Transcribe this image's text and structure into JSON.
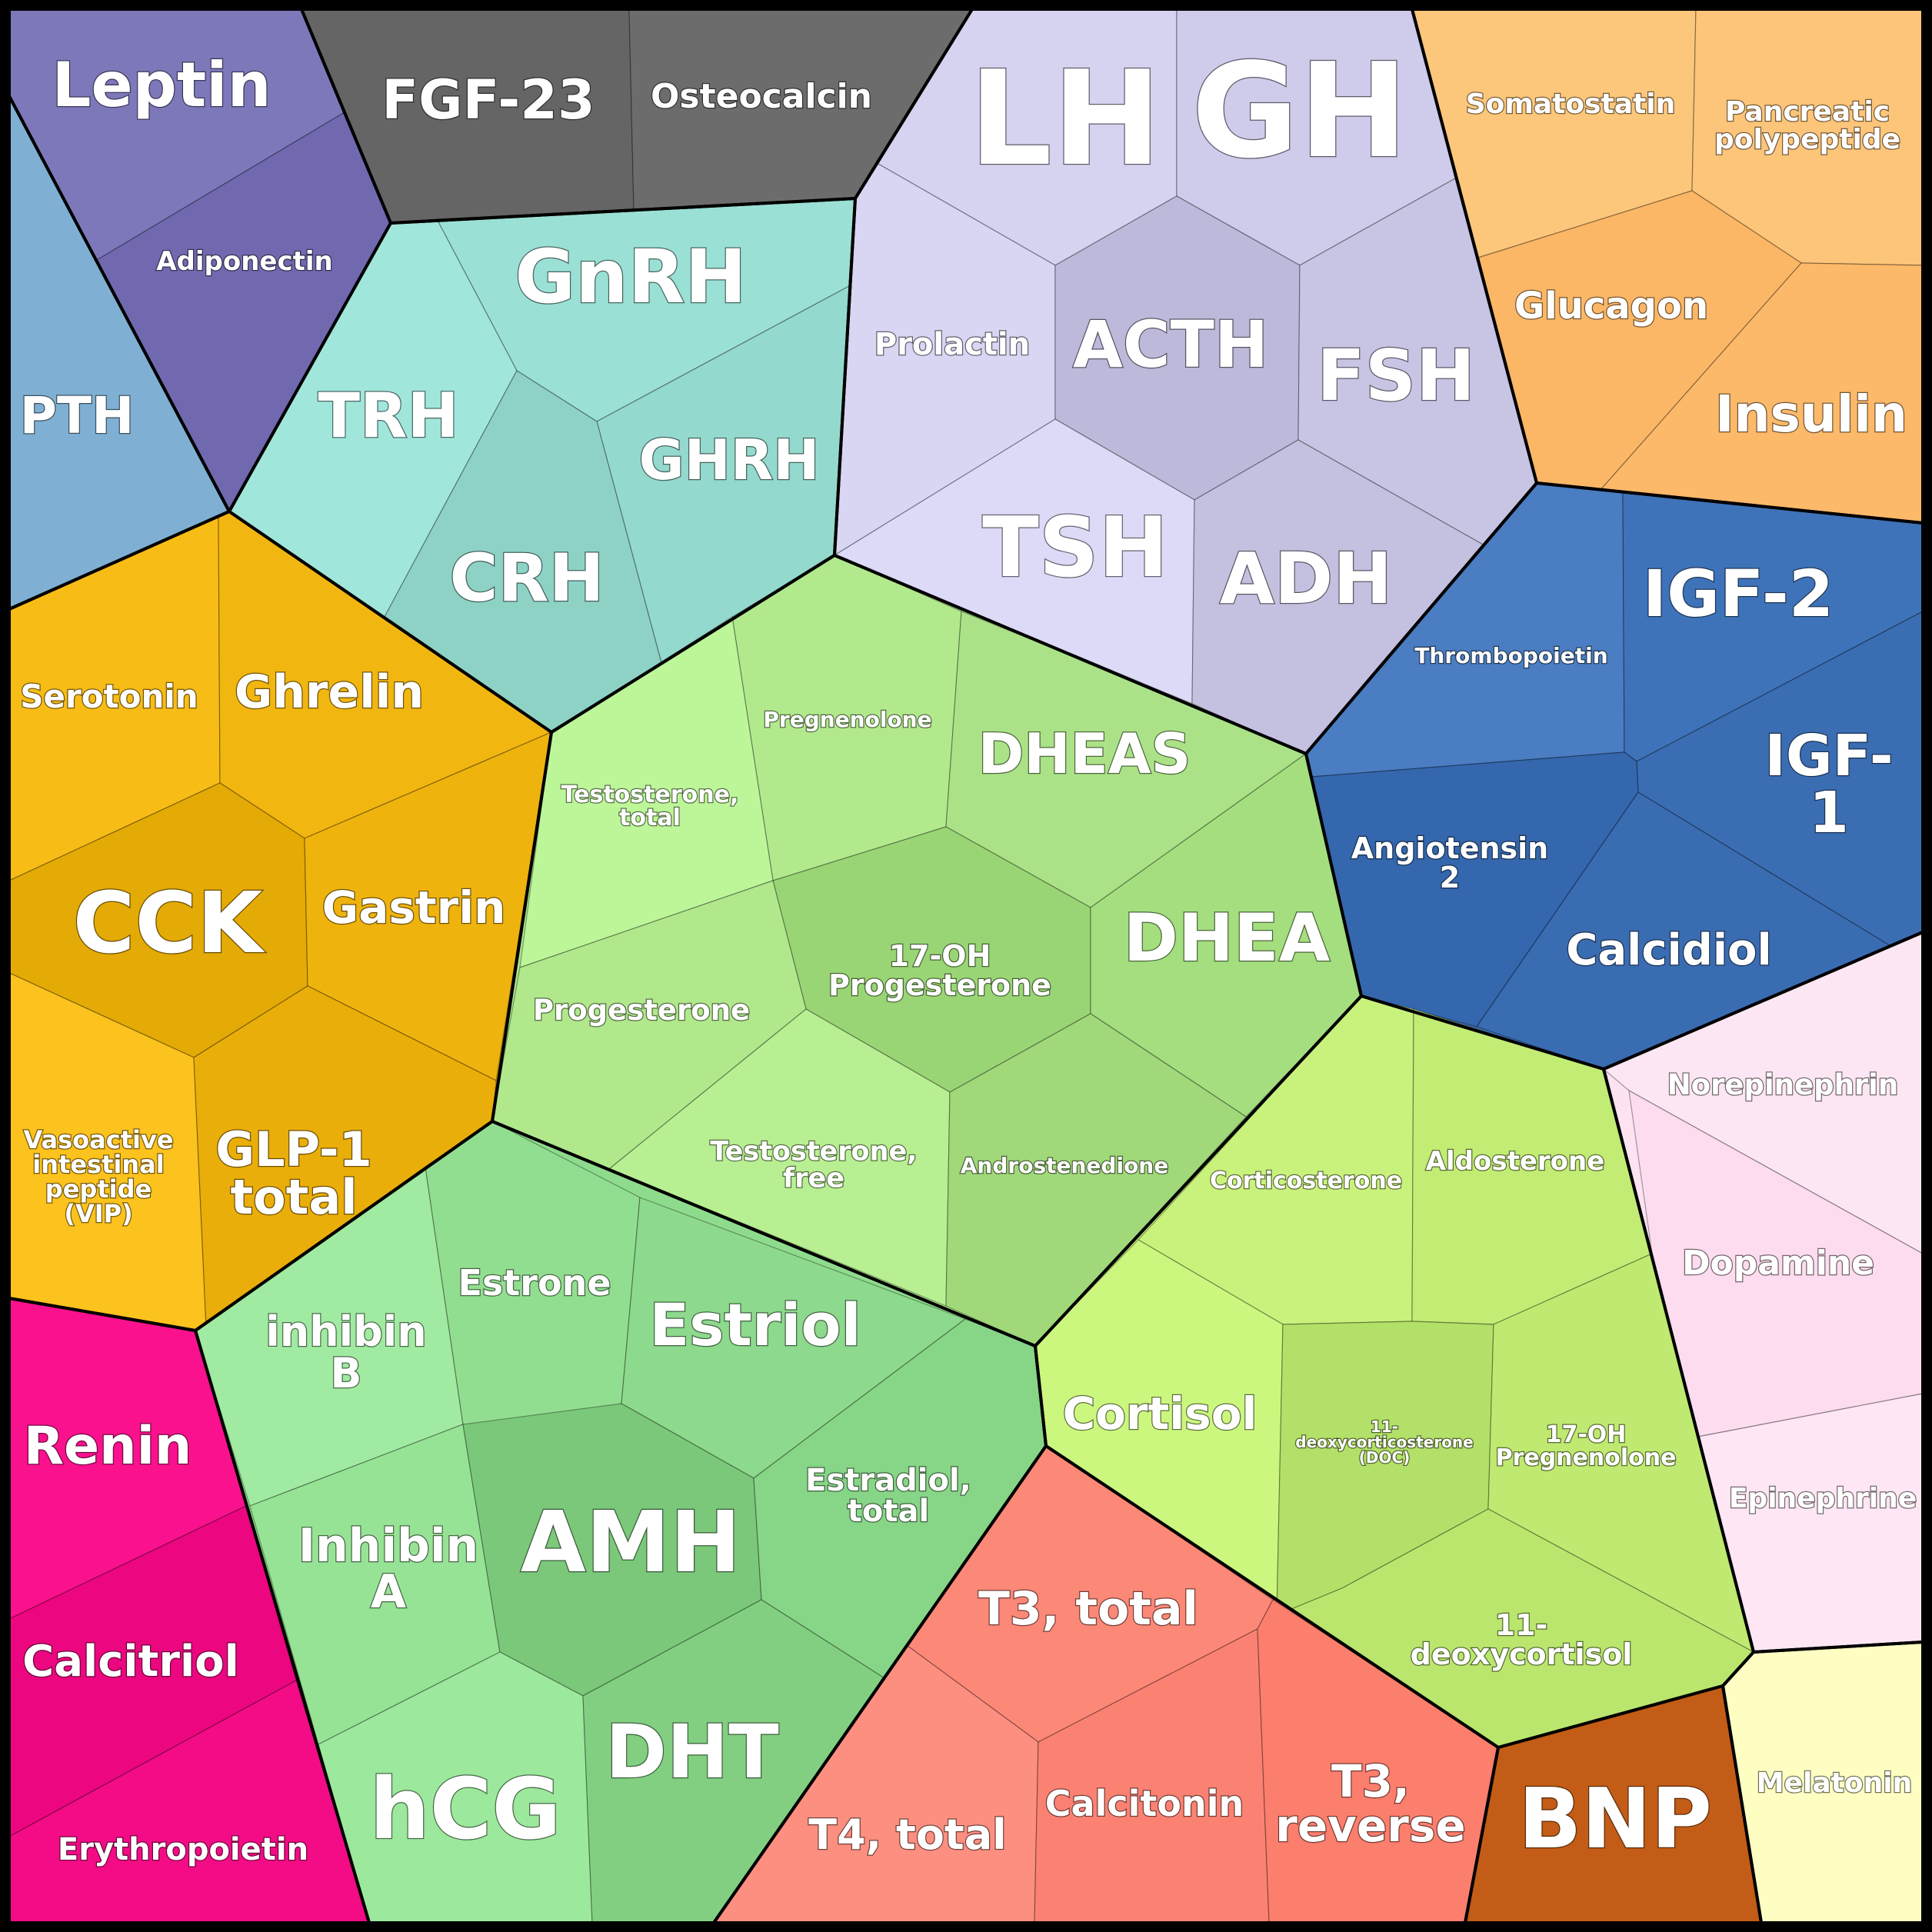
{
  "groups": [
    {
      "id": "adipose",
      "color": "#7a74b8",
      "hormones": [
        {
          "id": "leptin",
          "label": "Leptin",
          "color": "#7d78ba"
        },
        {
          "id": "adiponectin",
          "label": "Adiponectin",
          "color": "#7069b0"
        }
      ]
    },
    {
      "id": "bone",
      "color": "#686868",
      "hormones": [
        {
          "id": "fgf23",
          "label": "FGF-23",
          "color": "#656565"
        },
        {
          "id": "osteocalcin",
          "label": "Osteocalcin",
          "color": "#6c6c6c"
        }
      ]
    },
    {
      "id": "pituitary",
      "color": "#cdcbe9",
      "hormones": [
        {
          "id": "lh",
          "label": "LH",
          "color": "#d5d3ef"
        },
        {
          "id": "gh",
          "label": "GH",
          "color": "#cfcbea"
        },
        {
          "id": "prolactin",
          "label": "Prolactin",
          "color": "#d8d6f2"
        },
        {
          "id": "acth",
          "label": "ACTH",
          "color": "#bdb9da"
        },
        {
          "id": "fsh",
          "label": "FSH",
          "color": "#c8c4e4"
        },
        {
          "id": "tsh",
          "label": "TSH",
          "color": "#dcdaf6"
        },
        {
          "id": "adh",
          "label": "ADH",
          "color": "#c4c0df"
        }
      ]
    },
    {
      "id": "pancreas",
      "color": "#fbbd6d",
      "hormones": [
        {
          "id": "somatostatin",
          "label": "Somatostatin",
          "color": "#fdc77b"
        },
        {
          "id": "pancreatic-polypeptide",
          "label": "Pancreatic\npolypeptide",
          "color": "#fdc57a"
        },
        {
          "id": "glucagon",
          "label": "Glucagon",
          "color": "#fbb766"
        },
        {
          "id": "insulin",
          "label": "Insulin",
          "color": "#fcb96a"
        }
      ]
    },
    {
      "id": "parathyroid",
      "color": "#7faed1",
      "hormones": [
        {
          "id": "pth",
          "label": "PTH",
          "color": "#7fb0d3"
        }
      ]
    },
    {
      "id": "hypothalamus",
      "color": "#97ddd1",
      "hormones": [
        {
          "id": "gnrh",
          "label": "GnRH",
          "color": "#9be0d4"
        },
        {
          "id": "trh",
          "label": "TRH",
          "color": "#a1e6da"
        },
        {
          "id": "ghrh",
          "label": "GHRH",
          "color": "#94d9cd"
        },
        {
          "id": "crh",
          "label": "CRH",
          "color": "#8ed2c6"
        }
      ]
    },
    {
      "id": "gut",
      "color": "#f0b612",
      "hormones": [
        {
          "id": "serotonin",
          "label": "Serotonin",
          "color": "#f8bc17"
        },
        {
          "id": "ghrelin",
          "label": "Ghrelin",
          "color": "#f2b610"
        },
        {
          "id": "cck",
          "label": "CCK",
          "color": "#e4aa05"
        },
        {
          "id": "gastrin",
          "label": "Gastrin",
          "color": "#efb30e"
        },
        {
          "id": "vip",
          "label": "Vasoactive\nintestinal\npeptide\n(VIP)",
          "color": "#fcc21d"
        },
        {
          "id": "glp1",
          "label": "GLP-1\ntotal",
          "color": "#eaae0a"
        }
      ]
    },
    {
      "id": "androgens",
      "color": "#aee58a",
      "hormones": [
        {
          "id": "pregnenolone",
          "label": "Pregnenolone",
          "color": "#b2e98d"
        },
        {
          "id": "dheas",
          "label": "DHEAS",
          "color": "#abe287"
        },
        {
          "id": "testosterone-total",
          "label": "Testosterone,\ntotal",
          "color": "#bdf699"
        },
        {
          "id": "17oh-progesterone",
          "label": "17-OH\nProgesterone",
          "color": "#9ad575"
        },
        {
          "id": "dhea",
          "label": "DHEA",
          "color": "#a4de7e"
        },
        {
          "id": "progesterone",
          "label": "Progesterone",
          "color": "#b1e88c"
        },
        {
          "id": "testosterone-free",
          "label": "Testosterone,\nfree",
          "color": "#b8ef92"
        },
        {
          "id": "androstenedione",
          "label": "Androstenedione",
          "color": "#a0d87a"
        }
      ]
    },
    {
      "id": "kidney-liver",
      "color": "#3e70b6",
      "hormones": [
        {
          "id": "thrombopoietin",
          "label": "Thrombopoietin",
          "color": "#4a7dc1"
        },
        {
          "id": "igf2",
          "label": "IGF-2",
          "color": "#3f73b9"
        },
        {
          "id": "igf1",
          "label": "IGF-\n1",
          "color": "#3b6db3"
        },
        {
          "id": "angiotensin2",
          "label": "Angiotensin\n2",
          "color": "#3467ad"
        },
        {
          "id": "calcidiol",
          "label": "Calcidiol",
          "color": "#3a6cb2"
        }
      ]
    },
    {
      "id": "adrenal-medulla",
      "color": "#fde2f1",
      "hormones": [
        {
          "id": "norepinephrine",
          "label": "Norepinephrin",
          "color": "#fde6f3"
        },
        {
          "id": "dopamine",
          "label": "Dopamine",
          "color": "#fcdcee"
        },
        {
          "id": "epinephrine",
          "label": "Epinephrine",
          "color": "#fee6f4"
        }
      ]
    },
    {
      "id": "estrogens",
      "color": "#8fdb8e",
      "hormones": [
        {
          "id": "inhibin-b",
          "label": "inhibin\nB",
          "color": "#a0eaa1"
        },
        {
          "id": "estrone",
          "label": "Estrone",
          "color": "#92de90"
        },
        {
          "id": "estriol",
          "label": "Estriol",
          "color": "#8dd98d"
        },
        {
          "id": "inhibin-a",
          "label": "Inhibin\nA",
          "color": "#97e396"
        },
        {
          "id": "amh",
          "label": "AMH",
          "color": "#7bc87b"
        },
        {
          "id": "estradiol-total",
          "label": "Estradiol,\ntotal",
          "color": "#87d587"
        },
        {
          "id": "hcg",
          "label": "hCG",
          "color": "#9ce89d"
        },
        {
          "id": "dht",
          "label": "DHT",
          "color": "#82cf82"
        }
      ]
    },
    {
      "id": "corticosteroids",
      "color": "#c6ef78",
      "hormones": [
        {
          "id": "corticosterone",
          "label": "Corticosterone",
          "color": "#c9f27c"
        },
        {
          "id": "aldosterone",
          "label": "Aldosterone",
          "color": "#c2ec74"
        },
        {
          "id": "cortisol",
          "label": "Cortisol",
          "color": "#ccf77f"
        },
        {
          "id": "doc",
          "label": "11-\ndeoxycorticosterone\n(DOC)",
          "color": "#b3e068"
        },
        {
          "id": "17oh-pregnenolone",
          "label": "17-OH\nPregnenolone",
          "color": "#bfe970"
        },
        {
          "id": "11-deoxycortisol",
          "label": "11-\ndeoxycortisol",
          "color": "#bae66d"
        }
      ]
    },
    {
      "id": "kidney",
      "color": "#f00c86",
      "hormones": [
        {
          "id": "renin",
          "label": "Renin",
          "color": "#fa118d"
        },
        {
          "id": "calcitriol",
          "label": "Calcitriol",
          "color": "#ec067f"
        },
        {
          "id": "erythropoietin",
          "label": "Erythropoietin",
          "color": "#f30c86"
        }
      ]
    },
    {
      "id": "thyroid",
      "color": "#fd8474",
      "hormones": [
        {
          "id": "t3-total",
          "label": "T3, total",
          "color": "#fc8878"
        },
        {
          "id": "t4-total",
          "label": "T4, total",
          "color": "#fd8f80"
        },
        {
          "id": "calcitonin",
          "label": "Calcitonin",
          "color": "#fb8273"
        },
        {
          "id": "t3-reverse",
          "label": "T3,\nreverse",
          "color": "#fc7e6d"
        }
      ]
    },
    {
      "id": "heart",
      "color": "#c35c16",
      "hormones": [
        {
          "id": "bnp",
          "label": "BNP",
          "color": "#c35c16"
        }
      ]
    },
    {
      "id": "pineal",
      "color": "#ffffc2",
      "hormones": [
        {
          "id": "melatonin",
          "label": "Melatonin",
          "color": "#fefec2"
        }
      ]
    }
  ]
}
